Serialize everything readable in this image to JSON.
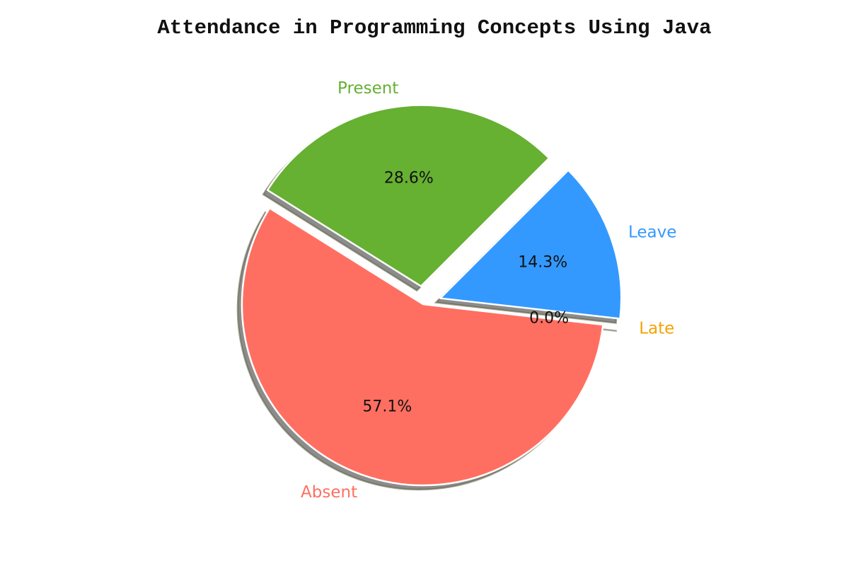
{
  "chart_data": {
    "type": "pie",
    "title": "Attendance in Programming Concepts Using Java",
    "categories": [
      "Present",
      "Absent",
      "Late",
      "Leave"
    ],
    "values": [
      28.6,
      57.1,
      0.0,
      14.3
    ],
    "percent_labels": [
      "28.6%",
      "57.1%",
      "0.0%",
      "14.3%"
    ],
    "colors": [
      "#66b032",
      "#ff6f61",
      "#f4a300",
      "#3399ff"
    ],
    "exploded": [
      true,
      false,
      true,
      true
    ],
    "shadow": true,
    "legend": "none"
  }
}
